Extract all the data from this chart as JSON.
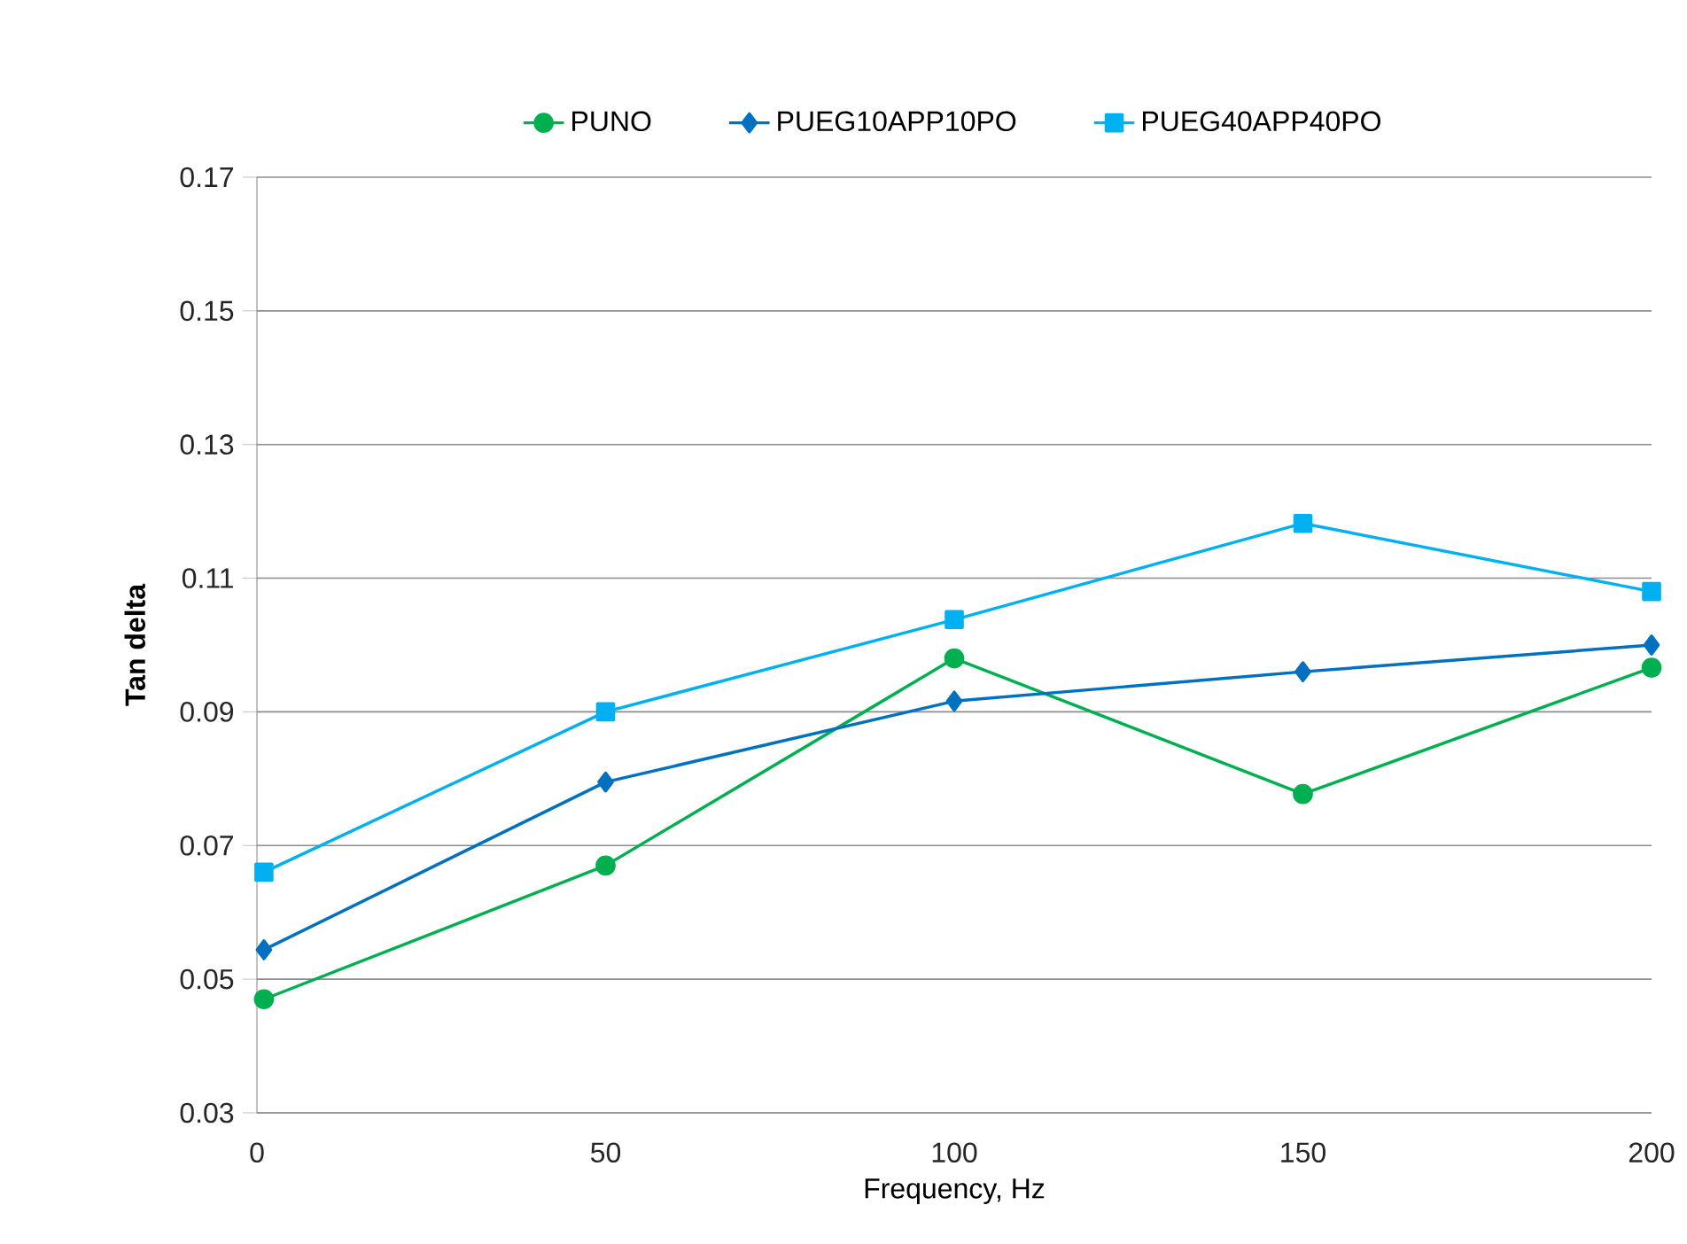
{
  "chart_data": {
    "type": "line",
    "xlabel": "Frequency, Hz",
    "ylabel": "Tan delta",
    "x": [
      1,
      50,
      100,
      150,
      200
    ],
    "series": [
      {
        "name": "PUNO",
        "color": "#00b050",
        "marker": "circle",
        "values": [
          0.047,
          0.067,
          0.098,
          0.0777,
          0.0966
        ]
      },
      {
        "name": "PUEG10APP10PO",
        "color": "#0070c0",
        "marker": "diamond",
        "values": [
          0.0544,
          0.0795,
          0.0916,
          0.096,
          0.1
        ]
      },
      {
        "name": "PUEG40APP40PO",
        "color": "#00b0f0",
        "marker": "square",
        "values": [
          0.066,
          0.09,
          0.1038,
          0.1182,
          0.108
        ]
      }
    ],
    "xlim": [
      0,
      200
    ],
    "xticks": [
      0,
      50,
      100,
      150,
      200
    ],
    "ylim": [
      0.03,
      0.17
    ],
    "yticks": [
      0.03,
      0.05,
      0.07,
      0.09,
      0.11,
      0.13,
      0.15,
      0.17
    ],
    "grid": "y",
    "legend": "top",
    "line_style": "solid"
  }
}
